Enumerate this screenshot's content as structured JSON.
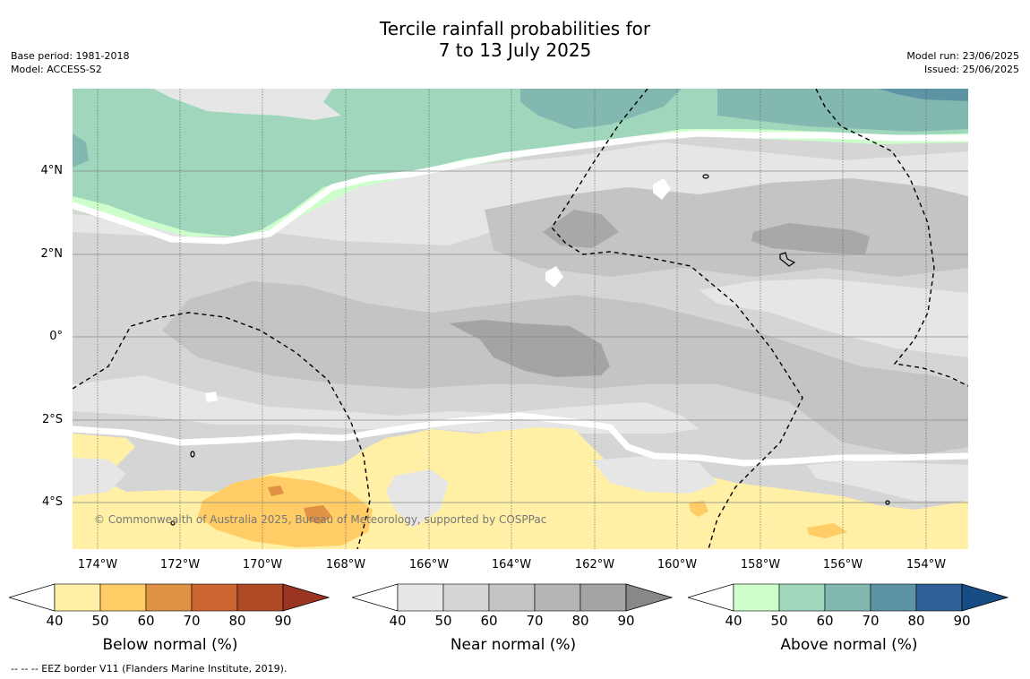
{
  "title": {
    "line1": "Tercile rainfall probabilities for",
    "line2": "7 to 13 July 2025"
  },
  "meta_left": {
    "base_period": "Base period: 1981-2018",
    "model": "Model: ACCESS-S2"
  },
  "meta_right": {
    "model_run": "Model run: 23/06/2025",
    "issued": "Issued: 25/06/2025"
  },
  "map": {
    "credit": "© Commonwealth of Australia 2025, Bureau of Meteorology, supported by COSPPac",
    "longitude_labels": [
      "174°W",
      "172°W",
      "170°W",
      "168°W",
      "166°W",
      "164°W",
      "162°W",
      "160°W",
      "158°W",
      "156°W",
      "154°W"
    ],
    "latitude_labels": [
      "4°N",
      "2°N",
      "0°",
      "2°S",
      "4°S"
    ]
  },
  "colorbars": [
    {
      "title": "Below normal (%)",
      "ticks": [
        "40",
        "50",
        "60",
        "70",
        "80",
        "90"
      ],
      "colors": [
        "#ffffff",
        "#fff0a6",
        "#ffcc66",
        "#e09244",
        "#cd6533",
        "#b04a26",
        "#993521"
      ]
    },
    {
      "title": "Near normal (%)",
      "ticks": [
        "40",
        "50",
        "60",
        "70",
        "80",
        "90"
      ],
      "colors": [
        "#ffffff",
        "#e6e6e6",
        "#d5d5d5",
        "#c4c4c4",
        "#b5b5b5",
        "#a4a4a4",
        "#888888"
      ]
    },
    {
      "title": "Above normal (%)",
      "ticks": [
        "40",
        "50",
        "60",
        "70",
        "80",
        "90"
      ],
      "colors": [
        "#ffffff",
        "#ccffcc",
        "#9fd6bc",
        "#83b8b0",
        "#5c94a3",
        "#2f6196",
        "#174c84"
      ]
    }
  ],
  "footnote": "--  --  -- EEZ border V11 (Flanders Marine Institute, 2019)."
}
